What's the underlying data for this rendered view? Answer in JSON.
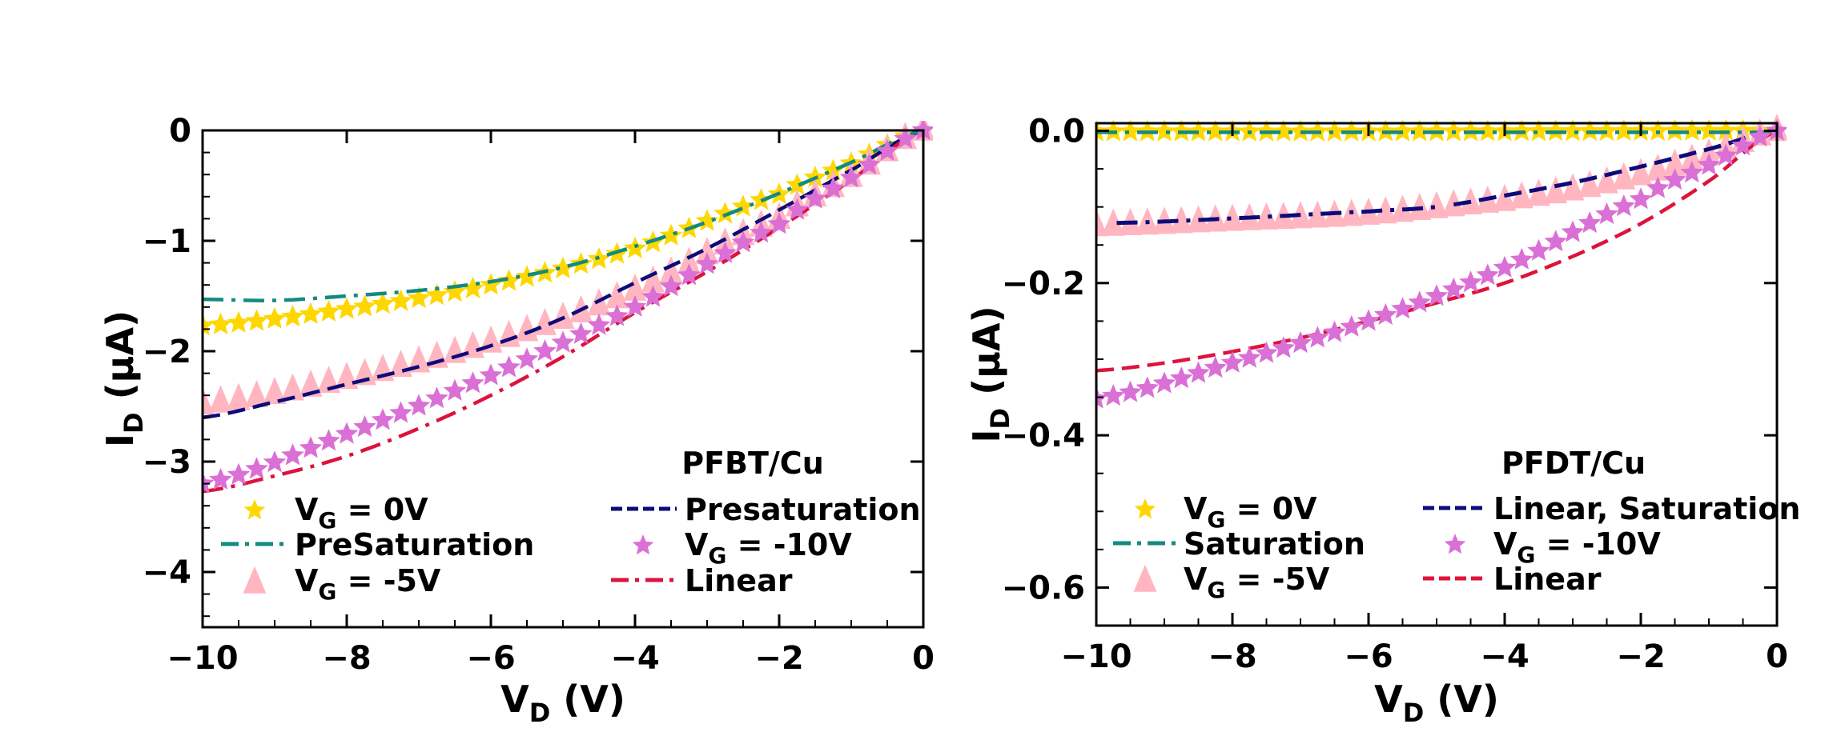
{
  "chart_data": [
    {
      "type": "line",
      "panel": "left",
      "annotation": "PFBT/Cu",
      "xlabel": "V_D (V)",
      "xlabel_main": "V",
      "xlabel_sub": "D",
      "xlabel_unit": " (V)",
      "ylabel": "I_D (μA)",
      "ylabel_main": "I",
      "ylabel_sub": "D",
      "ylabel_unit": " (μA)",
      "xlim": [
        -10,
        0
      ],
      "ylim": [
        -4.5,
        0
      ],
      "xticks": [
        -10,
        -8,
        -6,
        -4,
        -2,
        0
      ],
      "xtick_labels": [
        "−10",
        "−8",
        "−6",
        "−4",
        "−2",
        "0"
      ],
      "xminor_step": 0.5,
      "yticks": [
        0,
        -1,
        -2,
        -3,
        -4
      ],
      "ytick_labels": [
        "0",
        "−1",
        "−2",
        "−3",
        "−4"
      ],
      "yminor_step": 0.2,
      "grid": false,
      "legend_placement": "bottom",
      "legend_columns": 2,
      "legend": [
        {
          "label_main": "V",
          "label_sub": "G",
          "label_rest": " = 0V",
          "series": 0
        },
        {
          "label_main": "PreSaturation",
          "label_sub": "",
          "label_rest": "",
          "series": 1
        },
        {
          "label_main": "V",
          "label_sub": "G",
          "label_rest": " = -5V",
          "series": 2
        },
        {
          "label_main": "Presaturation",
          "label_sub": "",
          "label_rest": "",
          "series": 3
        },
        {
          "label_main": "V",
          "label_sub": "G",
          "label_rest": " = -10V",
          "series": 4
        },
        {
          "label_main": "Linear",
          "label_sub": "",
          "label_rest": "",
          "series": 5
        }
      ],
      "series": [
        {
          "name": "VG = 0V",
          "kind": "marker",
          "marker": "star",
          "color": "#FFD700",
          "x": [
            -10,
            -8,
            -6,
            -4,
            -2,
            -1,
            0
          ],
          "y": [
            -1.77,
            -1.62,
            -1.4,
            -1.07,
            -0.58,
            -0.3,
            0
          ]
        },
        {
          "name": "PreSaturation",
          "kind": "line",
          "dash": "dashdot",
          "color": "#138A80",
          "x": [
            -10,
            -9,
            -8,
            -7,
            -6,
            -5,
            -4,
            -3,
            -2,
            -1,
            0
          ],
          "y": [
            -1.53,
            -1.54,
            -1.5,
            -1.45,
            -1.37,
            -1.24,
            -1.05,
            -0.83,
            -0.57,
            -0.29,
            0
          ]
        },
        {
          "name": "VG = -5V",
          "kind": "marker",
          "marker": "triangle",
          "color": "#FFB6C1",
          "x": [
            -10,
            -8,
            -6,
            -4,
            -2,
            -1,
            0
          ],
          "y": [
            -2.48,
            -2.25,
            -1.92,
            -1.45,
            -0.8,
            -0.42,
            0
          ]
        },
        {
          "name": "Presaturation",
          "kind": "line",
          "dash": "dashed",
          "color": "#0B0B7A",
          "x": [
            -10,
            -9,
            -8,
            -7,
            -6,
            -5,
            -4,
            -3,
            -2,
            -1,
            0
          ],
          "y": [
            -2.6,
            -2.46,
            -2.3,
            -2.14,
            -1.95,
            -1.7,
            -1.38,
            -1.07,
            -0.72,
            -0.36,
            0
          ]
        },
        {
          "name": "VG = -10V",
          "kind": "marker",
          "marker": "star",
          "color": "#DA70D6",
          "x": [
            -10,
            -8,
            -6,
            -4,
            -2,
            -1,
            0
          ],
          "y": [
            -3.2,
            -2.75,
            -2.22,
            -1.6,
            -0.85,
            -0.43,
            0
          ]
        },
        {
          "name": "Linear",
          "kind": "line",
          "dash": "dashdot",
          "color": "#DC143C",
          "x": [
            -10,
            -9,
            -8,
            -7,
            -6,
            -5,
            -4,
            -3,
            -2,
            -1,
            0
          ],
          "y": [
            -3.27,
            -3.13,
            -2.95,
            -2.7,
            -2.4,
            -2.05,
            -1.65,
            -1.28,
            -0.88,
            -0.45,
            0
          ]
        }
      ]
    },
    {
      "type": "line",
      "panel": "right",
      "annotation": "PFDT/Cu",
      "xlabel": "V_D (V)",
      "xlabel_main": "V",
      "xlabel_sub": "D",
      "xlabel_unit": " (V)",
      "ylabel": "I_D (μA)",
      "ylabel_main": "I",
      "ylabel_sub": "D",
      "ylabel_unit": " (μA)",
      "xlim": [
        -10,
        0
      ],
      "ylim": [
        -0.65,
        0.01
      ],
      "xticks": [
        -10,
        -8,
        -6,
        -4,
        -2,
        0
      ],
      "xtick_labels": [
        "−10",
        "−8",
        "−6",
        "−4",
        "−2",
        "0"
      ],
      "xminor_step": 0.5,
      "yticks": [
        0,
        -0.2,
        -0.4,
        -0.6
      ],
      "ytick_labels": [
        "0.0",
        "−0.2",
        "−0.4",
        "−0.6"
      ],
      "yminor_step": 0.05,
      "grid": false,
      "legend_placement": "bottom",
      "legend_columns": 2,
      "legend": [
        {
          "label_main": "V",
          "label_sub": "G",
          "label_rest": " = 0V",
          "series": 0
        },
        {
          "label_main": "Saturation",
          "label_sub": "",
          "label_rest": "",
          "series": 1
        },
        {
          "label_main": "V",
          "label_sub": "G",
          "label_rest": " = -5V",
          "series": 2
        },
        {
          "label_main": "Linear, Saturation",
          "label_sub": "",
          "label_rest": "",
          "series": 3
        },
        {
          "label_main": "V",
          "label_sub": "G",
          "label_rest": " = -10V",
          "series": 4
        },
        {
          "label_main": "Linear",
          "label_sub": "",
          "label_rest": "",
          "series": 5
        }
      ],
      "series": [
        {
          "name": "VG = 0V",
          "kind": "marker",
          "marker": "star",
          "color": "#FFD700",
          "x": [
            -10,
            -5,
            0
          ],
          "y": [
            -0.001,
            -0.001,
            0
          ]
        },
        {
          "name": "Saturation",
          "kind": "line",
          "dash": "dashdot",
          "color": "#138A80",
          "x": [
            -10,
            -5,
            0
          ],
          "y": [
            -0.002,
            -0.002,
            -0.002
          ]
        },
        {
          "name": "VG = -5V",
          "kind": "marker",
          "marker": "triangle",
          "color": "#FFB6C1",
          "x": [
            -10,
            -8,
            -6,
            -4,
            -3,
            -2,
            -1,
            0
          ],
          "y": [
            -0.125,
            -0.118,
            -0.11,
            -0.092,
            -0.078,
            -0.058,
            -0.032,
            0
          ]
        },
        {
          "name": "Linear, Saturation",
          "kind": "line",
          "dash": "dashdot-then-dashed",
          "split_x": -5.0,
          "color": "#0B0B7A",
          "x": [
            -9.7,
            -8,
            -6,
            -5,
            -4,
            -3,
            -2,
            -1,
            0
          ],
          "y": [
            -0.121,
            -0.115,
            -0.106,
            -0.1,
            -0.085,
            -0.068,
            -0.047,
            -0.024,
            0
          ]
        },
        {
          "name": "VG = -10V",
          "kind": "marker",
          "marker": "star",
          "color": "#DA70D6",
          "x": [
            -10,
            -8,
            -6,
            -4,
            -2,
            -1,
            0
          ],
          "y": [
            -0.352,
            -0.305,
            -0.25,
            -0.18,
            -0.09,
            -0.045,
            0
          ]
        },
        {
          "name": "Linear",
          "kind": "line",
          "dash": "dashed",
          "color": "#DC143C",
          "x": [
            -10,
            -9,
            -8,
            -7,
            -6,
            -5,
            -4,
            -3,
            -2,
            -1,
            0
          ],
          "y": [
            -0.315,
            -0.305,
            -0.29,
            -0.272,
            -0.25,
            -0.226,
            -0.2,
            -0.165,
            -0.122,
            -0.066,
            0
          ]
        }
      ]
    }
  ]
}
